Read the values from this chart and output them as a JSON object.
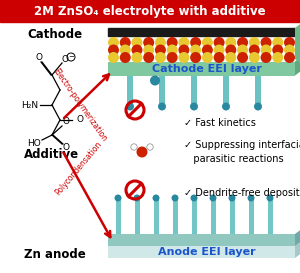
{
  "title": "2M ZnSO₄ electrolyte with additive",
  "title_bg": "#cc0000",
  "title_color": "white",
  "cathode_label": "Cathode",
  "anode_label": "Zn anode",
  "cathode_EEI": "Cathode EEI layer",
  "anode_EEI": "Anode EEI layer",
  "additive_label": "Additive",
  "arrow1_text": "Electro-polymerization",
  "arrow2_text": "Polycondensation",
  "benefit1": "✓ Fast kinetics",
  "benefit2": "✓ Suppressing interfacial\n   parasitic reactions",
  "benefit3": "✓ Dendrite-free deposition",
  "bg_color": "white",
  "arrow_color": "#cc0000",
  "EEI_color": "#1a55cc",
  "cathode_plate_color": "#1a1a1a",
  "sphere_yellow": "#e8c830",
  "sphere_red": "#cc2200",
  "teal_color": "#50b8b8",
  "teal_dark": "#2888a0",
  "no_symbol_color": "#cc0000",
  "anode_body_color": "#d0e8e8",
  "anode_top_color": "#90c8c0"
}
